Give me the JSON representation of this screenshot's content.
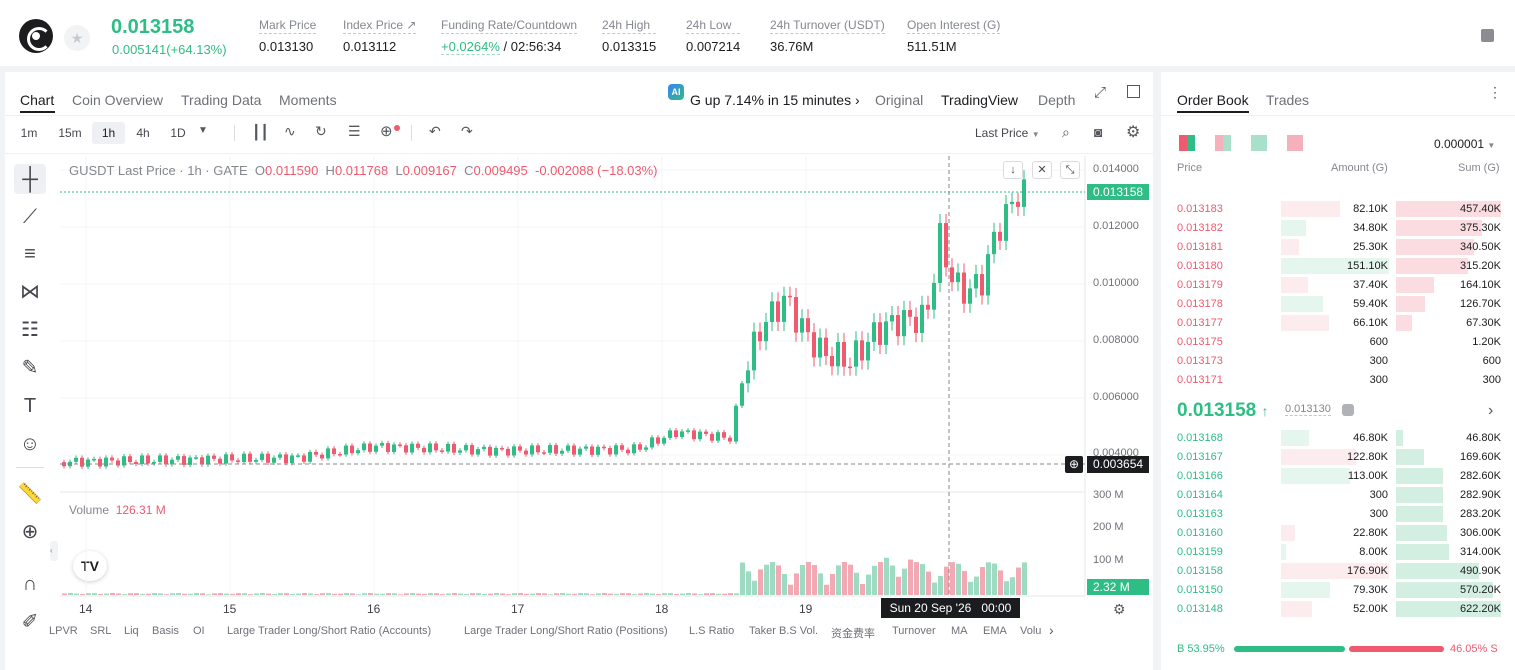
{
  "ticker": {
    "last": "0.013158",
    "change": "0.005141(+64.13%)"
  },
  "stats": [
    {
      "label": "Mark Price",
      "value": "0.013130"
    },
    {
      "label": "Index Price ↗",
      "value": "0.013112"
    },
    {
      "label": "Funding Rate/Countdown",
      "value": "/ 02:56:34",
      "value2": "+0.0264%"
    },
    {
      "label": "24h High",
      "value": "0.013315"
    },
    {
      "label": "24h Low",
      "value": "0.007214"
    },
    {
      "label": "24h Turnover (USDT)",
      "value": "36.76M"
    },
    {
      "label": "Open Interest (G)",
      "value": "511.51M"
    }
  ],
  "tabs": [
    "Chart",
    "Coin Overview",
    "Trading Data",
    "Moments"
  ],
  "alert": "G up 7.14% in 15 minutes",
  "views": [
    "Original",
    "TradingView",
    "Depth"
  ],
  "timeframes": [
    "1m",
    "15m",
    "1h",
    "4h",
    "1D"
  ],
  "price_source": "Last Price",
  "legend": {
    "title": "GUSDT Last Price · 1h · GATE",
    "o": "0.011590",
    "h": "0.011768",
    "l": "0.009167",
    "c": "0.009495",
    "chg": "-0.002088 (−18.03%)"
  },
  "price_axis": [
    "0.014000",
    "0.012000",
    "0.010000",
    "0.008000",
    "0.006000",
    "0.004000"
  ],
  "last_tag": "0.013158",
  "cross_tag": "0.003654",
  "volume": {
    "label": "Volume",
    "value": "126.31 M",
    "axis": [
      "300 M",
      "200 M",
      "100 M"
    ],
    "tag": "2.32 M"
  },
  "x_axis": [
    "14",
    "15",
    "16",
    "17",
    "18",
    "19"
  ],
  "crosshair_time": "Sun 20 Sep '26   00:00",
  "indicators": [
    "LPVR",
    "SRL",
    "Liq",
    "Basis",
    "OI",
    "Large Trader Long/Short Ratio (Accounts)",
    "Large Trader Long/Short Ratio (Positions)",
    "L.S Ratio",
    "Taker B.S Vol.",
    "资金费率",
    "Turnover",
    "MA",
    "EMA",
    "Volu"
  ],
  "orderbook": {
    "tabs": [
      "Order Book",
      "Trades"
    ],
    "precision": "0.000001",
    "headers": [
      "Price",
      "Amount (G)",
      "Sum (G)"
    ],
    "asks": [
      {
        "price": "0.013183",
        "amount": "82.10K",
        "sum": "457.40K",
        "amt_frac": 0.55,
        "sum_frac": 1.0
      },
      {
        "price": "0.013182",
        "amount": "34.80K",
        "sum": "375.30K",
        "amt_frac": 0.23,
        "sum_frac": 0.82
      },
      {
        "price": "0.013181",
        "amount": "25.30K",
        "sum": "340.50K",
        "amt_frac": 0.17,
        "sum_frac": 0.74
      },
      {
        "price": "0.013180",
        "amount": "151.10K",
        "sum": "315.20K",
        "amt_frac": 1.0,
        "sum_frac": 0.69
      },
      {
        "price": "0.013179",
        "amount": "37.40K",
        "sum": "164.10K",
        "amt_frac": 0.25,
        "sum_frac": 0.36
      },
      {
        "price": "0.013178",
        "amount": "59.40K",
        "sum": "126.70K",
        "amt_frac": 0.39,
        "sum_frac": 0.28
      },
      {
        "price": "0.013177",
        "amount": "66.10K",
        "sum": "67.30K",
        "amt_frac": 0.44,
        "sum_frac": 0.15
      },
      {
        "price": "0.013175",
        "amount": "600",
        "sum": "1.20K",
        "amt_frac": 0.0,
        "sum_frac": 0.0
      },
      {
        "price": "0.013173",
        "amount": "300",
        "sum": "600",
        "amt_frac": 0.0,
        "sum_frac": 0.0
      },
      {
        "price": "0.013171",
        "amount": "300",
        "sum": "300",
        "amt_frac": 0.0,
        "sum_frac": 0.0
      }
    ],
    "mid": {
      "price": "0.013158",
      "mark": "0.013130"
    },
    "bids": [
      {
        "price": "0.013168",
        "amount": "46.80K",
        "sum": "46.80K",
        "amt_frac": 0.26,
        "sum_frac": 0.07
      },
      {
        "price": "0.013167",
        "amount": "122.80K",
        "sum": "169.60K",
        "amt_frac": 0.69,
        "sum_frac": 0.27
      },
      {
        "price": "0.013166",
        "amount": "113.00K",
        "sum": "282.60K",
        "amt_frac": 0.64,
        "sum_frac": 0.45
      },
      {
        "price": "0.013164",
        "amount": "300",
        "sum": "282.90K",
        "amt_frac": 0.0,
        "sum_frac": 0.45
      },
      {
        "price": "0.013163",
        "amount": "300",
        "sum": "283.20K",
        "amt_frac": 0.0,
        "sum_frac": 0.45
      },
      {
        "price": "0.013160",
        "amount": "22.80K",
        "sum": "306.00K",
        "amt_frac": 0.13,
        "sum_frac": 0.49
      },
      {
        "price": "0.013159",
        "amount": "8.00K",
        "sum": "314.00K",
        "amt_frac": 0.05,
        "sum_frac": 0.5
      },
      {
        "price": "0.013158",
        "amount": "176.90K",
        "sum": "490.90K",
        "amt_frac": 1.0,
        "sum_frac": 0.79
      },
      {
        "price": "0.013150",
        "amount": "79.30K",
        "sum": "570.20K",
        "amt_frac": 0.45,
        "sum_frac": 0.92
      },
      {
        "price": "0.013148",
        "amount": "52.00K",
        "sum": "622.20K",
        "amt_frac": 0.29,
        "sum_frac": 1.0
      }
    ],
    "ratio": {
      "buy": "B 53.95%",
      "sell": "46.05% S",
      "buy_frac": 0.5395
    }
  },
  "colors": {
    "up": "#2ebd85",
    "down": "#ef5a6f",
    "up_light": "#e5f6ef",
    "down_light": "#fdecee",
    "vol_up": "#9edbc3",
    "vol_down": "#f3a9b4"
  }
}
